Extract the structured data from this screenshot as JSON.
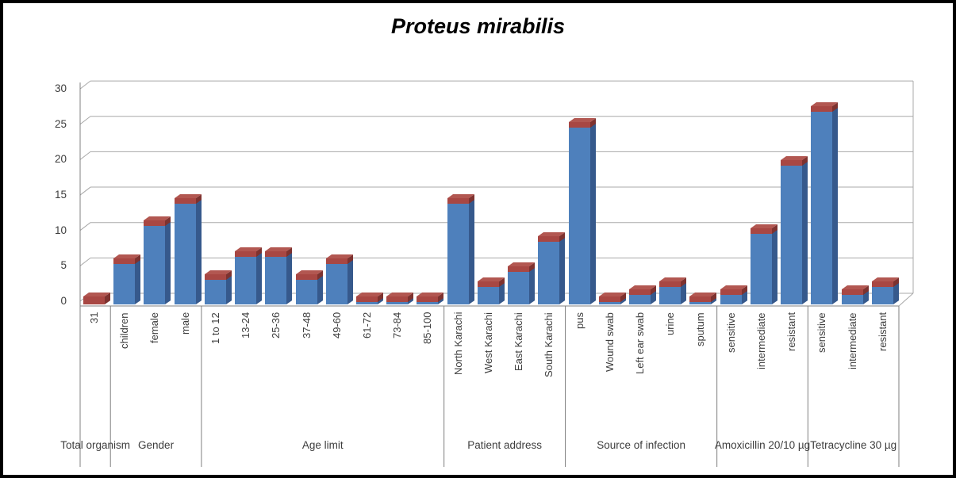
{
  "window": {
    "background": "#ffffff",
    "border_color": "#000000"
  },
  "chart_data": {
    "type": "bar",
    "style": "3d-column",
    "title": "Proteus mirabilis",
    "xlabel": "",
    "ylabel": "",
    "ylim": [
      0,
      30
    ],
    "yticks": [
      0,
      5,
      10,
      15,
      20,
      25,
      30
    ],
    "grid": true,
    "legend": false,
    "colors": {
      "bar_front": "#4e80bc",
      "bar_side": "#36598c",
      "cap_front": "#a84743",
      "cap_top": "#b25751",
      "cap_side": "#7e322f",
      "gridline": "#a8a8a8",
      "axis": "#808080",
      "text": "#3d3d3d",
      "title": "#000000"
    },
    "groups": [
      {
        "label": "Total organism",
        "bars": [
          {
            "label": "31",
            "value": 1,
            "variant": "red"
          }
        ]
      },
      {
        "label": "Gender",
        "bars": [
          {
            "label": "children",
            "value": 6
          },
          {
            "label": "female",
            "value": 11
          },
          {
            "label": "male",
            "value": 14
          }
        ]
      },
      {
        "label": "Age limit",
        "bars": [
          {
            "label": "1 to 12",
            "value": 4
          },
          {
            "label": "13-24",
            "value": 7
          },
          {
            "label": "25-36",
            "value": 7
          },
          {
            "label": "37-48",
            "value": 4
          },
          {
            "label": "49-60",
            "value": 6
          },
          {
            "label": "61-72",
            "value": 1
          },
          {
            "label": "73-84",
            "value": 1
          },
          {
            "label": "85-100",
            "value": 1
          }
        ]
      },
      {
        "label": "Patient address",
        "bars": [
          {
            "label": "North Karachi",
            "value": 14
          },
          {
            "label": "West Karachi",
            "value": 3
          },
          {
            "label": "East Karachi",
            "value": 5
          },
          {
            "label": "South Karachi",
            "value": 9
          }
        ]
      },
      {
        "label": "Source of infection",
        "bars": [
          {
            "label": "pus",
            "value": 24
          },
          {
            "label": "Wound swab",
            "value": 1
          },
          {
            "label": "Left ear swab",
            "value": 2
          },
          {
            "label": "urine",
            "value": 3
          },
          {
            "label": "sputum",
            "value": 1
          }
        ]
      },
      {
        "label": "Amoxicillin 20/10 µg",
        "bars": [
          {
            "label": "sensitive",
            "value": 2
          },
          {
            "label": "intermediate",
            "value": 10
          },
          {
            "label": "resistant",
            "value": 19
          }
        ]
      },
      {
        "label": "Tetracycline 30 µg",
        "bars": [
          {
            "label": "sensitive",
            "value": 26
          },
          {
            "label": "intermediate",
            "value": 2
          },
          {
            "label": "resistant",
            "value": 3
          }
        ]
      }
    ]
  }
}
